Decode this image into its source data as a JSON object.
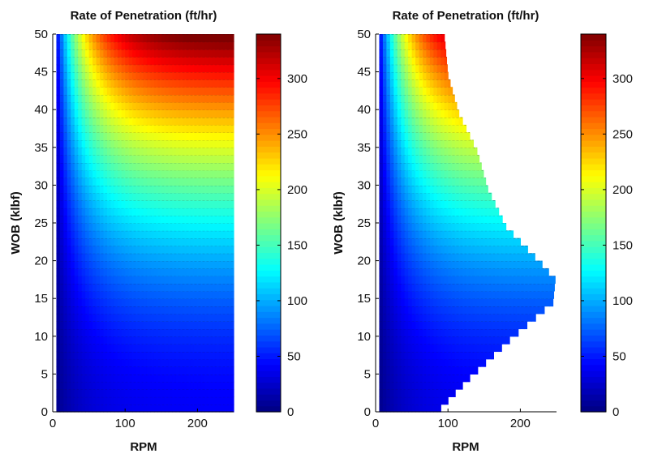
{
  "chart_data": [
    {
      "type": "heatmap",
      "title": "Rate of Penetration (ft/hr)",
      "xlabel": "RPM",
      "ylabel": "WOB (klbf)",
      "xlim": [
        0,
        250
      ],
      "ylim": [
        0,
        50
      ],
      "xticks": [
        0,
        100,
        200
      ],
      "yticks": [
        0,
        5,
        10,
        15,
        20,
        25,
        30,
        35,
        40,
        45,
        50
      ],
      "domain": "full",
      "x_range_rpm": [
        5,
        250
      ],
      "y_range_wob": [
        1,
        50
      ],
      "rop_range": [
        0,
        340
      ],
      "colorbar": {
        "ticks": [
          0,
          50,
          100,
          150,
          200,
          250,
          300
        ],
        "lim": [
          0,
          340
        ],
        "colormap": "jet"
      },
      "sample_values": [
        {
          "rpm": 10,
          "wob": 5,
          "rop": 10
        },
        {
          "rpm": 200,
          "wob": 5,
          "rop": 35
        },
        {
          "rpm": 200,
          "wob": 20,
          "rop": 90
        },
        {
          "rpm": 100,
          "wob": 30,
          "rop": 160
        },
        {
          "rpm": 200,
          "wob": 35,
          "rop": 240
        },
        {
          "rpm": 230,
          "wob": 48,
          "rop": 320
        }
      ]
    },
    {
      "type": "heatmap",
      "title": "Rate of Penetration (ft/hr)",
      "xlabel": "RPM",
      "ylabel": "WOB (klbf)",
      "xlim": [
        0,
        250
      ],
      "ylim": [
        0,
        50
      ],
      "xticks": [
        0,
        100,
        200
      ],
      "yticks": [
        0,
        5,
        10,
        15,
        20,
        25,
        30,
        35,
        40,
        45,
        50
      ],
      "domain": "restricted",
      "boundary_max_rpm": [
        {
          "wob": 1,
          "rpm": 90
        },
        {
          "wob": 5,
          "rpm": 130
        },
        {
          "wob": 10,
          "rpm": 185
        },
        {
          "wob": 15,
          "rpm": 245
        },
        {
          "wob": 18,
          "rpm": 248
        },
        {
          "wob": 20,
          "rpm": 230
        },
        {
          "wob": 25,
          "rpm": 180
        },
        {
          "wob": 30,
          "rpm": 155
        },
        {
          "wob": 35,
          "rpm": 140
        },
        {
          "wob": 40,
          "rpm": 115
        },
        {
          "wob": 45,
          "rpm": 100
        },
        {
          "wob": 50,
          "rpm": 95
        }
      ],
      "rop_range": [
        0,
        340
      ],
      "colorbar": {
        "ticks": [
          0,
          50,
          100,
          150,
          200,
          250,
          300
        ],
        "lim": [
          0,
          340
        ],
        "colormap": "jet"
      }
    }
  ]
}
